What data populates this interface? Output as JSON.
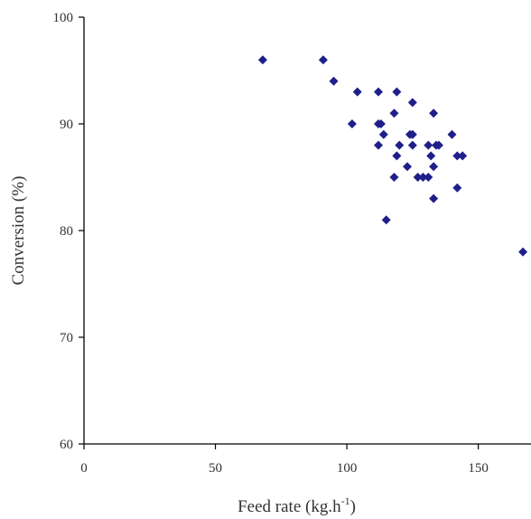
{
  "chart_data": {
    "type": "scatter",
    "xlabel": "Feed rate (kg.h",
    "xlabel_sup": "-1",
    "xlabel_end": ")",
    "ylabel": "Conversion (%)",
    "xlim": [
      0,
      168
    ],
    "ylim": [
      60,
      100
    ],
    "xticks": [
      0,
      50,
      100,
      150
    ],
    "yticks": [
      60,
      70,
      80,
      90,
      100
    ],
    "grid": false,
    "legend": "none",
    "marker": "diamond",
    "marker_color": "#1f1f8a",
    "points": [
      {
        "x": 68,
        "y": 96
      },
      {
        "x": 91,
        "y": 96
      },
      {
        "x": 95,
        "y": 94
      },
      {
        "x": 104,
        "y": 93
      },
      {
        "x": 112,
        "y": 93
      },
      {
        "x": 119,
        "y": 93
      },
      {
        "x": 125,
        "y": 92
      },
      {
        "x": 102,
        "y": 90
      },
      {
        "x": 112,
        "y": 90
      },
      {
        "x": 113,
        "y": 90
      },
      {
        "x": 118,
        "y": 91
      },
      {
        "x": 133,
        "y": 91
      },
      {
        "x": 114,
        "y": 89
      },
      {
        "x": 124,
        "y": 89
      },
      {
        "x": 125,
        "y": 89
      },
      {
        "x": 140,
        "y": 89
      },
      {
        "x": 112,
        "y": 88
      },
      {
        "x": 120,
        "y": 88
      },
      {
        "x": 125,
        "y": 88
      },
      {
        "x": 131,
        "y": 88
      },
      {
        "x": 134,
        "y": 88
      },
      {
        "x": 135,
        "y": 88
      },
      {
        "x": 119,
        "y": 87
      },
      {
        "x": 132,
        "y": 87
      },
      {
        "x": 142,
        "y": 87
      },
      {
        "x": 144,
        "y": 87
      },
      {
        "x": 123,
        "y": 86
      },
      {
        "x": 133,
        "y": 86
      },
      {
        "x": 118,
        "y": 85
      },
      {
        "x": 127,
        "y": 85
      },
      {
        "x": 129,
        "y": 85
      },
      {
        "x": 131,
        "y": 85
      },
      {
        "x": 142,
        "y": 84
      },
      {
        "x": 133,
        "y": 83
      },
      {
        "x": 115,
        "y": 81
      },
      {
        "x": 167,
        "y": 78
      }
    ]
  }
}
